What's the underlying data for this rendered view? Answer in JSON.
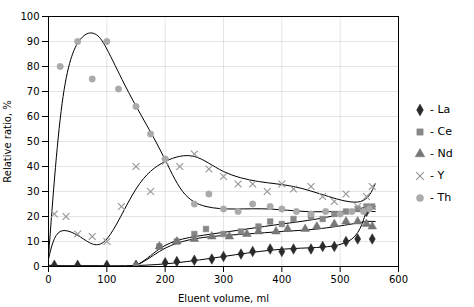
{
  "chart_data": {
    "type": "scatter",
    "xlabel": "Eluent volume, ml",
    "ylabel": "Relative ratio, %",
    "xlim": [
      0,
      600
    ],
    "ylim": [
      0,
      100
    ],
    "xticks": [
      0,
      100,
      200,
      300,
      400,
      500,
      600
    ],
    "yticks": [
      0,
      10,
      20,
      30,
      40,
      50,
      60,
      70,
      80,
      90,
      100
    ],
    "grid": true,
    "legend": "right",
    "series": [
      {
        "name": "- La",
        "color": "#2a2a2a",
        "marker": "diamond",
        "x": [
          10,
          50,
          100,
          150,
          200,
          220,
          250,
          280,
          300,
          330,
          350,
          380,
          400,
          420,
          450,
          470,
          490,
          510,
          530,
          545,
          555
        ],
        "values": [
          0.5,
          0.5,
          0.5,
          0.5,
          1.5,
          2,
          2.5,
          3,
          4,
          5,
          6,
          7,
          6,
          7,
          7,
          8,
          8,
          10,
          11,
          22,
          11
        ],
        "curve_x": [
          0,
          30,
          80,
          150,
          220,
          300,
          380,
          450,
          520,
          545,
          560
        ],
        "curve_y": [
          0.5,
          0.3,
          0.3,
          0.4,
          1.5,
          4,
          6.5,
          7.5,
          11,
          22,
          23
        ]
      },
      {
        "name": "- Ce",
        "color": "#888888",
        "marker": "square",
        "x": [
          150,
          190,
          220,
          250,
          270,
          300,
          330,
          360,
          380,
          400,
          420,
          450,
          470,
          490,
          510,
          530,
          545,
          555
        ],
        "values": [
          0,
          8,
          10,
          13,
          15,
          13,
          14,
          16,
          18,
          17,
          19,
          20,
          19,
          21,
          22,
          23,
          24,
          24
        ],
        "curve_x": [
          0,
          100,
          150,
          190,
          230,
          280,
          340,
          400,
          460,
          520,
          545,
          560
        ],
        "curve_y": [
          0,
          0,
          0.5,
          7,
          11,
          13,
          15,
          17,
          19,
          22,
          24,
          24
        ]
      },
      {
        "name": "- Nd",
        "color": "#777777",
        "marker": "triangle",
        "x": [
          150,
          190,
          220,
          250,
          280,
          310,
          340,
          360,
          390,
          410,
          440,
          460,
          490,
          510,
          530,
          545,
          555
        ],
        "values": [
          0,
          8,
          10,
          11,
          12,
          12,
          13,
          14,
          14,
          15,
          15,
          16,
          17,
          18,
          18,
          17,
          16
        ],
        "curve_x": [
          0,
          100,
          150,
          190,
          230,
          280,
          340,
          400,
          460,
          520,
          545,
          560
        ],
        "curve_y": [
          0,
          0,
          0.5,
          6,
          10,
          12,
          13,
          14,
          15,
          17,
          18,
          18
        ]
      },
      {
        "name": "- Y",
        "color": "#999999",
        "marker": "times",
        "x": [
          10,
          30,
          50,
          75,
          100,
          125,
          150,
          175,
          200,
          225,
          250,
          275,
          300,
          325,
          350,
          375,
          400,
          420,
          450,
          470,
          490,
          510,
          530,
          545,
          555
        ],
        "values": [
          21,
          20,
          13,
          12,
          10,
          24,
          40,
          30,
          42,
          40,
          45,
          39,
          36,
          33,
          33,
          30,
          33,
          31,
          32,
          28,
          26,
          29,
          24,
          28,
          32
        ],
        "curve_x": [
          0,
          20,
          60,
          100,
          150,
          200,
          250,
          300,
          360,
          420,
          480,
          535,
          560
        ],
        "curve_y": [
          3,
          14,
          11,
          11,
          31,
          42,
          44,
          38,
          34,
          32,
          28,
          26,
          33
        ]
      },
      {
        "name": "- Th",
        "color": "#aaaaaa",
        "marker": "circle",
        "x": [
          20,
          50,
          75,
          100,
          120,
          150,
          175,
          200,
          250,
          275,
          300,
          325,
          350,
          380,
          400,
          425,
          450,
          475,
          500,
          520,
          540,
          550
        ],
        "values": [
          80,
          90,
          75,
          90,
          71,
          64,
          53,
          43,
          25,
          29,
          23,
          22,
          25,
          24,
          23,
          22,
          21,
          22,
          21,
          22,
          22,
          23
        ],
        "curve_x": [
          0,
          25,
          55,
          80,
          100,
          130,
          160,
          195,
          230,
          270,
          320,
          380,
          440,
          500,
          540,
          560
        ],
        "curve_y": [
          4,
          68,
          91,
          93,
          87,
          73,
          60,
          45,
          30,
          24,
          23,
          23,
          22,
          22,
          22,
          22
        ]
      }
    ]
  }
}
